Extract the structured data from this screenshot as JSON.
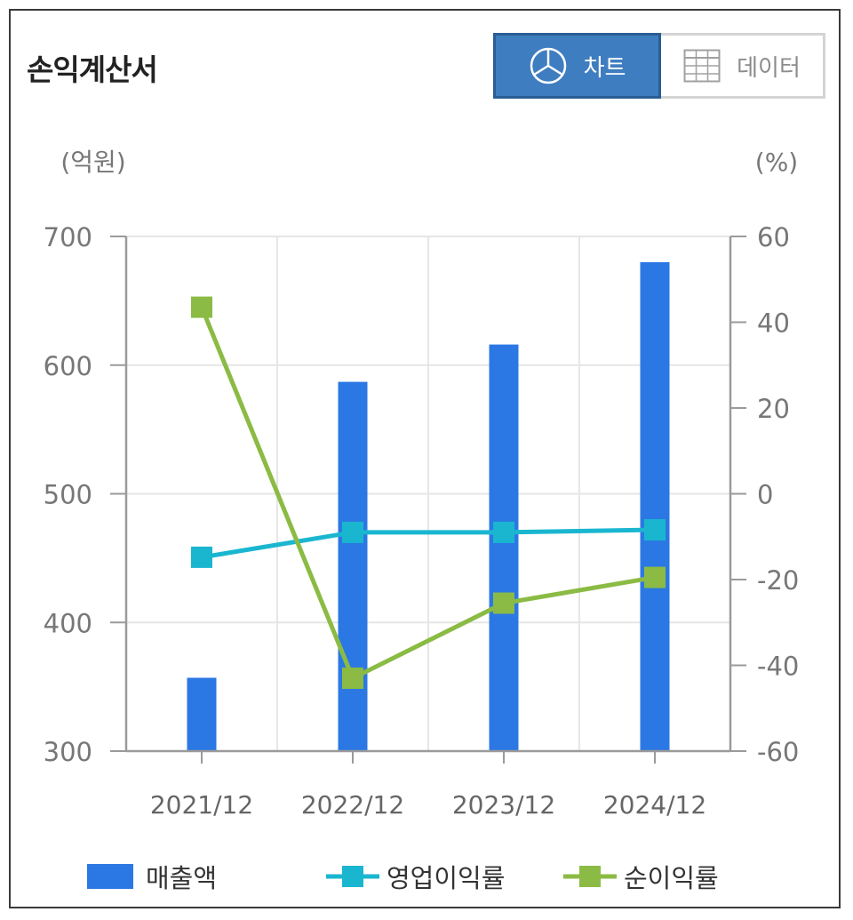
{
  "header": {
    "title": "손익계산서"
  },
  "view_toggle": {
    "chart_label": "차트",
    "data_label": "데이터",
    "chart_icon": "pie-chart-icon",
    "data_icon": "table-grid-icon"
  },
  "chart_data": {
    "type": "bar",
    "title": "",
    "categories": [
      "2021/12",
      "2022/12",
      "2023/12",
      "2024/12"
    ],
    "left_axis": {
      "unit": "(억원)",
      "ylim": [
        300,
        700
      ],
      "ticks": [
        300,
        400,
        500,
        600,
        700
      ]
    },
    "right_axis": {
      "unit": "(%)",
      "ylim": [
        -60,
        60
      ],
      "ticks": [
        -60,
        -40,
        -20,
        0,
        20,
        40,
        60
      ]
    },
    "series": [
      {
        "name": "매출액",
        "type": "bar",
        "axis": "left",
        "color": "#2b78e4",
        "values": [
          357,
          587,
          616,
          680
        ]
      },
      {
        "name": "영업이익률",
        "type": "line",
        "axis": "right",
        "color": "#1ab6d0",
        "values": [
          -14.8,
          -9.0,
          -9.0,
          -8.4
        ]
      },
      {
        "name": "순이익률",
        "type": "line",
        "axis": "right",
        "color": "#8bbb44",
        "values": [
          43.5,
          -43.0,
          -25.5,
          -19.5
        ]
      }
    ],
    "grid": true,
    "legend": "bottom"
  }
}
